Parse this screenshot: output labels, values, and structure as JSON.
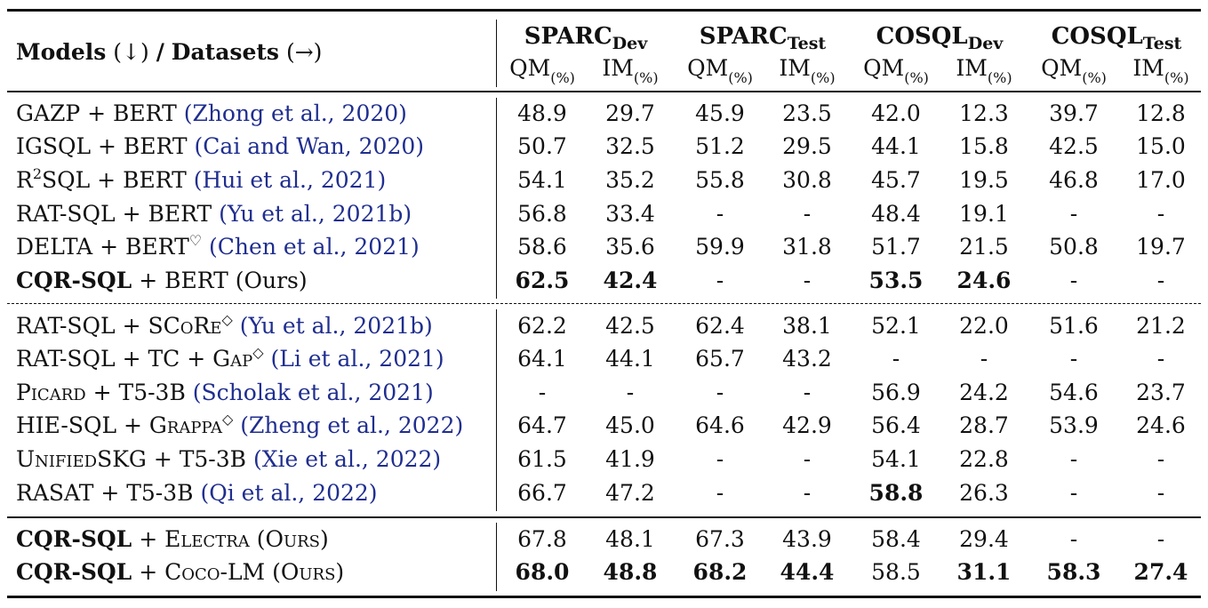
{
  "header": {
    "models_label": "Models",
    "models_arrow": "(↓)",
    "separator": "/",
    "datasets_label": "Datasets",
    "datasets_arrow": "(→)",
    "datasets": [
      {
        "name": "SPARC",
        "split": "Dev"
      },
      {
        "name": "SPARC",
        "split": "Test"
      },
      {
        "name": "COSQL",
        "split": "Dev"
      },
      {
        "name": "COSQL",
        "split": "Test"
      }
    ],
    "metric_qm": "QM",
    "metric_im": "IM",
    "metric_unit": "(%)"
  },
  "groups": [
    {
      "rows": [
        {
          "model": "GAZP + BERT",
          "model_prefix": "",
          "sup": "",
          "model_suffix": "",
          "cite": "(Zhong et al., 2020)",
          "ours": false,
          "values": [
            "48.9",
            "29.7",
            "45.9",
            "23.5",
            "42.0",
            "12.3",
            "39.7",
            "12.8"
          ],
          "bold": []
        },
        {
          "model": "IGSQL + BERT",
          "model_prefix": "",
          "sup": "",
          "model_suffix": "",
          "cite": "(Cai and Wan, 2020)",
          "ours": false,
          "values": [
            "50.7",
            "32.5",
            "51.2",
            "29.5",
            "44.1",
            "15.8",
            "42.5",
            "15.0"
          ],
          "bold": []
        },
        {
          "model": "SQL + BERT",
          "model_prefix": "R",
          "sup": "2",
          "model_suffix": "",
          "cite": "(Hui et al., 2021)",
          "ours": false,
          "values": [
            "54.1",
            "35.2",
            "55.8",
            "30.8",
            "45.7",
            "19.5",
            "46.8",
            "17.0"
          ],
          "bold": []
        },
        {
          "model": "RAT-SQL + BERT",
          "model_prefix": "",
          "sup": "",
          "model_suffix": "",
          "cite": "(Yu et al., 2021b)",
          "ours": false,
          "values": [
            "56.8",
            "33.4",
            "-",
            "-",
            "48.4",
            "19.1",
            "-",
            "-"
          ],
          "bold": []
        },
        {
          "model": "DELTA + BERT",
          "model_prefix": "",
          "sup": "♡",
          "model_suffix": "",
          "cite": "(Chen et al., 2021)",
          "ours": false,
          "values": [
            "58.6",
            "35.6",
            "59.9",
            "31.8",
            "51.7",
            "21.5",
            "50.8",
            "19.7"
          ],
          "bold": []
        },
        {
          "model": "CQR-SQL",
          "model_prefix": "",
          "sup": "",
          "model_suffix": " + BERT (Ours)",
          "cite": "",
          "ours": true,
          "values": [
            "62.5",
            "42.4",
            "-",
            "-",
            "53.5",
            "24.6",
            "-",
            "-"
          ],
          "bold": [
            0,
            1,
            4,
            5
          ]
        }
      ]
    },
    {
      "rows": [
        {
          "model": "RAT-SQL + SCoRe",
          "model_prefix": "",
          "sup": "◇",
          "model_suffix": "",
          "cite": "(Yu et al., 2021b)",
          "ours": false,
          "sc": true,
          "values": [
            "62.2",
            "42.5",
            "62.4",
            "38.1",
            "52.1",
            "22.0",
            "51.6",
            "21.2"
          ],
          "bold": []
        },
        {
          "model": "RAT-SQL + TC + Gap",
          "model_prefix": "",
          "sup": "◇",
          "model_suffix": "",
          "cite": "(Li et al., 2021)",
          "ours": false,
          "sc": true,
          "values": [
            "64.1",
            "44.1",
            "65.7",
            "43.2",
            "-",
            "-",
            "-",
            "-"
          ],
          "bold": []
        },
        {
          "model": "Picard + T5-3B",
          "model_prefix": "",
          "sup": "",
          "model_suffix": "",
          "cite": "(Scholak et al., 2021)",
          "ours": false,
          "sc": true,
          "values": [
            "-",
            "-",
            "-",
            "-",
            "56.9",
            "24.2",
            "54.6",
            "23.7"
          ],
          "bold": []
        },
        {
          "model": "HIE-SQL + Grappa",
          "model_prefix": "",
          "sup": "◇",
          "model_suffix": "",
          "cite": "(Zheng et al., 2022)",
          "ours": false,
          "sc": true,
          "values": [
            "64.7",
            "45.0",
            "64.6",
            "42.9",
            "56.4",
            "28.7",
            "53.9",
            "24.6"
          ],
          "bold": []
        },
        {
          "model": "UnifiedSKG + T5-3B",
          "model_prefix": "",
          "sup": "",
          "model_suffix": "",
          "cite": "(Xie et al., 2022)",
          "ours": false,
          "sc": true,
          "values": [
            "61.5",
            "41.9",
            "-",
            "-",
            "54.1",
            "22.8",
            "-",
            "-"
          ],
          "bold": []
        },
        {
          "model": "RASAT + T5-3B",
          "model_prefix": "",
          "sup": "",
          "model_suffix": "",
          "cite": "(Qi et al., 2022)",
          "ours": false,
          "values": [
            "66.7",
            "47.2",
            "-",
            "-",
            "58.8",
            "26.3",
            "-",
            "-"
          ],
          "bold": [
            4
          ]
        }
      ]
    },
    {
      "rows": [
        {
          "model": "CQR-SQL",
          "model_prefix": "",
          "sup": "",
          "model_suffix": " + Electra (Ours)",
          "cite": "",
          "ours": true,
          "sc": true,
          "values": [
            "67.8",
            "48.1",
            "67.3",
            "43.9",
            "58.4",
            "29.4",
            "-",
            "-"
          ],
          "bold": []
        },
        {
          "model": "CQR-SQL",
          "model_prefix": "",
          "sup": "",
          "model_suffix": " + Coco-LM (Ours)",
          "cite": "",
          "ours": true,
          "sc": true,
          "values": [
            "68.0",
            "48.8",
            "68.2",
            "44.4",
            "58.5",
            "31.1",
            "58.3",
            "27.4"
          ],
          "bold": [
            0,
            1,
            2,
            3,
            5,
            6,
            7
          ]
        }
      ]
    }
  ]
}
